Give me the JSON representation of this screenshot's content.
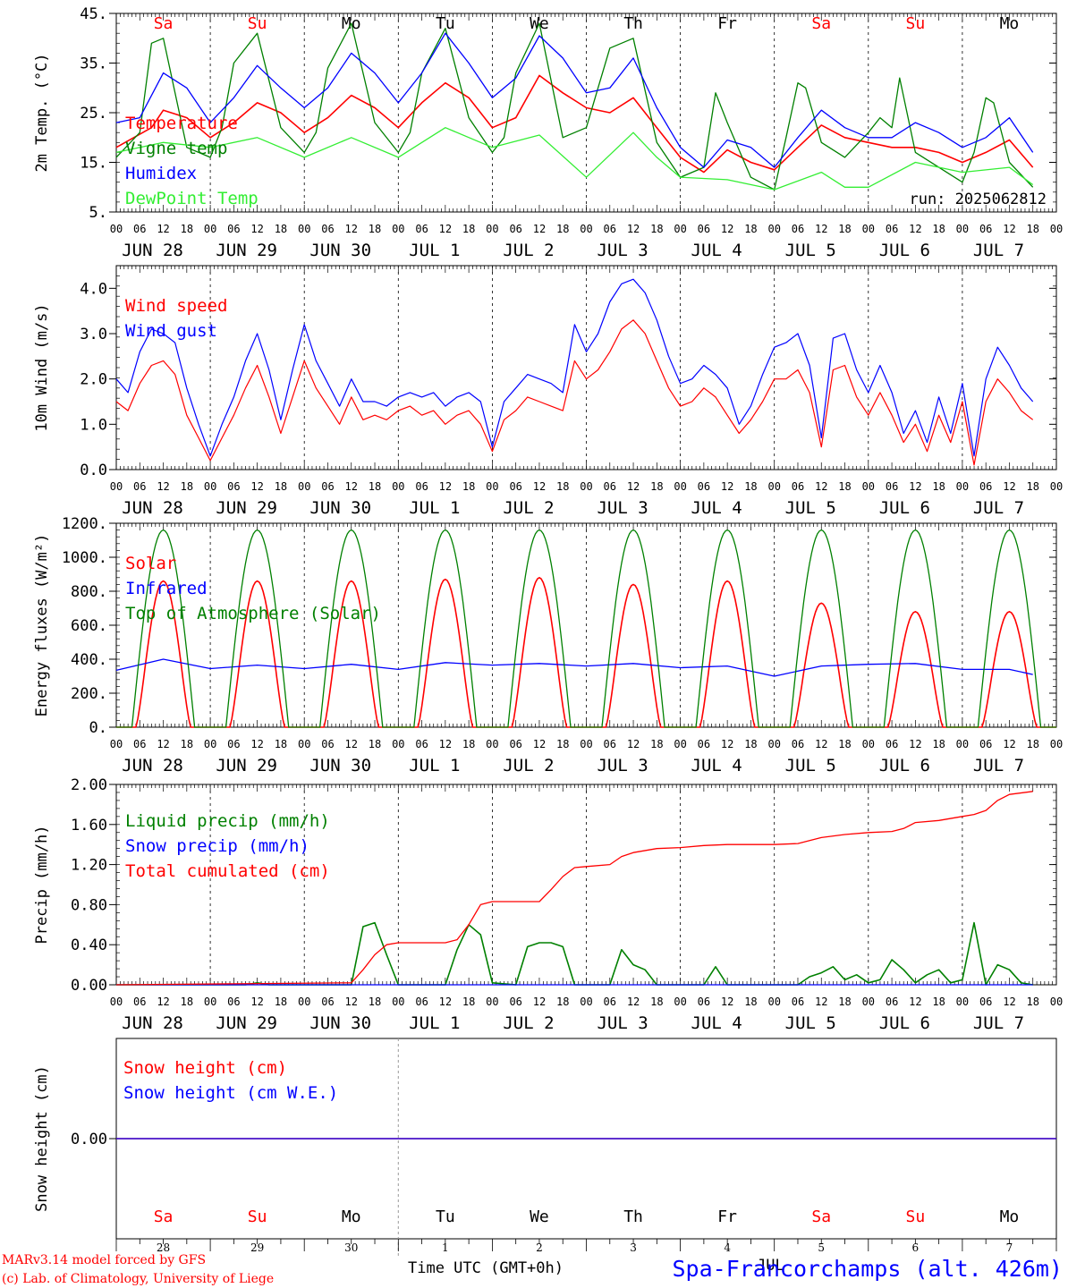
{
  "run_label": "run: 2025062812",
  "footer": {
    "model": "MARv3.14 model forced by GFS",
    "copyright": "(c) Lab. of Climatology, University of Liege",
    "time_label": "Time UTC (GMT+0h)",
    "month_label": "JUL",
    "station": "Spa-Francorchamps (alt. 426m)"
  },
  "days": [
    "JUN 28",
    "JUN 29",
    "JUN 30",
    "JUL  1",
    "JUL  2",
    "JUL  3",
    "JUL  4",
    "JUL  5",
    "JUL  6",
    "JUL  7"
  ],
  "day_numbers": [
    "28",
    "29",
    "30",
    "1",
    "2",
    "3",
    "4",
    "5",
    "6",
    "7"
  ],
  "weekdays": [
    "Sa",
    "Su",
    "Mo",
    "Tu",
    "We",
    "Th",
    "Fr",
    "Sa",
    "Su",
    "Mo"
  ],
  "hour_ticks": [
    "00",
    "06",
    "12",
    "18"
  ],
  "colors": {
    "red": "#ff0000",
    "green": "#008000",
    "blue": "#0000ff",
    "lightgreen": "#33ee33",
    "black": "#000000"
  },
  "chart_data": [
    {
      "type": "line",
      "ylabel": "2m Temp. (°C)",
      "ylim": [
        5,
        45
      ],
      "yticks": [
        "5.",
        "15.",
        "25.",
        "35.",
        "45."
      ],
      "x_unit": "hours since JUN 28 00 UTC",
      "series": [
        {
          "name": "Temperature",
          "color": "#ff0000",
          "x": [
            0,
            9,
            12,
            18,
            24,
            30,
            36,
            42,
            48,
            54,
            60,
            66,
            72,
            78,
            84,
            90,
            96,
            102,
            108,
            114,
            120,
            126,
            132,
            138,
            144,
            150,
            156,
            162,
            168,
            174,
            180,
            186,
            192,
            198,
            204,
            210,
            216,
            222,
            228,
            234
          ],
          "y": [
            18,
            22,
            25.5,
            24,
            20,
            23,
            27,
            25,
            21,
            24,
            28.5,
            26,
            22,
            27,
            31,
            28,
            22,
            24,
            32.5,
            29,
            26,
            25,
            28,
            22,
            16,
            13,
            17.5,
            15,
            13.5,
            18,
            22.5,
            20,
            19,
            18,
            18,
            17,
            15,
            17,
            19.5,
            14
          ]
        },
        {
          "name": "Vigne temp",
          "color": "#008000",
          "x": [
            0,
            6,
            9,
            12,
            18,
            24,
            27,
            30,
            36,
            42,
            48,
            51,
            54,
            60,
            66,
            72,
            75,
            78,
            84,
            90,
            96,
            99,
            102,
            108,
            114,
            120,
            123,
            126,
            132,
            138,
            144,
            150,
            153,
            156,
            162,
            168,
            171,
            174,
            176,
            180,
            186,
            192,
            195,
            198,
            200,
            204,
            210,
            216,
            219,
            222,
            224,
            228,
            234
          ],
          "y": [
            16,
            21,
            39,
            40,
            18,
            16,
            22,
            35,
            41,
            22,
            17,
            21,
            34,
            43,
            23,
            17,
            21,
            33,
            42,
            24,
            17,
            20,
            33,
            43,
            20,
            22,
            30,
            38,
            40,
            19,
            12,
            14,
            29,
            23,
            12,
            9.5,
            20,
            31,
            30,
            19,
            16,
            21,
            24,
            22,
            32,
            17,
            14,
            11,
            17,
            28,
            27,
            15,
            10
          ]
        },
        {
          "name": "Humidex",
          "color": "#0000ff",
          "x": [
            0,
            6,
            12,
            18,
            24,
            30,
            36,
            42,
            48,
            54,
            60,
            66,
            72,
            78,
            84,
            90,
            96,
            102,
            108,
            114,
            120,
            126,
            132,
            138,
            144,
            150,
            156,
            162,
            168,
            174,
            180,
            186,
            192,
            198,
            204,
            210,
            216,
            222,
            228,
            234
          ],
          "y": [
            23,
            24,
            33,
            30,
            23,
            28,
            34.5,
            30,
            26,
            30,
            37,
            33,
            27,
            33,
            41,
            35,
            28,
            32,
            40.5,
            36,
            29,
            30,
            36,
            26,
            18,
            14,
            19.5,
            18,
            14,
            20,
            25.5,
            22,
            20,
            20,
            23,
            21,
            18,
            20,
            24,
            17
          ]
        },
        {
          "name": "DewPoint Temp",
          "color": "#33ee33",
          "x": [
            0,
            12,
            24,
            36,
            48,
            60,
            72,
            84,
            96,
            108,
            120,
            132,
            138,
            144,
            156,
            168,
            180,
            186,
            192,
            204,
            216,
            228,
            234
          ],
          "y": [
            17,
            19,
            18,
            20,
            16,
            20,
            16,
            22,
            18,
            20.5,
            12,
            21,
            16,
            12,
            11.5,
            9.5,
            13,
            10,
            10,
            15,
            13,
            14,
            10.5
          ]
        }
      ]
    },
    {
      "type": "line",
      "ylabel": "10m Wind (m/s)",
      "ylim": [
        0,
        4.5
      ],
      "yticks": [
        "0.0",
        "1.0",
        "2.0",
        "3.0",
        "4.0"
      ],
      "x_unit": "hours since JUN 28 00 UTC",
      "series": [
        {
          "name": "Wind speed",
          "color": "#ff0000",
          "x": [
            0,
            3,
            6,
            9,
            12,
            15,
            18,
            21,
            24,
            27,
            30,
            33,
            36,
            39,
            42,
            45,
            48,
            51,
            54,
            57,
            60,
            63,
            66,
            69,
            72,
            75,
            78,
            81,
            84,
            87,
            90,
            93,
            96,
            99,
            102,
            105,
            108,
            111,
            114,
            117,
            120,
            123,
            126,
            129,
            132,
            135,
            138,
            141,
            144,
            147,
            150,
            153,
            156,
            159,
            162,
            165,
            168,
            171,
            174,
            177,
            180,
            183,
            186,
            189,
            192,
            195,
            198,
            201,
            204,
            207,
            210,
            213,
            216,
            219,
            222,
            225,
            228,
            231,
            234
          ],
          "y": [
            1.5,
            1.3,
            1.9,
            2.3,
            2.4,
            2.1,
            1.2,
            0.7,
            0.2,
            0.7,
            1.2,
            1.8,
            2.3,
            1.6,
            0.8,
            1.6,
            2.4,
            1.8,
            1.4,
            1.0,
            1.6,
            1.1,
            1.2,
            1.1,
            1.3,
            1.4,
            1.2,
            1.3,
            1.0,
            1.2,
            1.3,
            1.0,
            0.4,
            1.1,
            1.3,
            1.6,
            1.5,
            1.4,
            1.3,
            2.4,
            2.0,
            2.2,
            2.6,
            3.1,
            3.3,
            3.0,
            2.4,
            1.8,
            1.4,
            1.5,
            1.8,
            1.6,
            1.2,
            0.8,
            1.1,
            1.5,
            2.0,
            2.0,
            2.2,
            1.7,
            0.5,
            2.2,
            2.3,
            1.6,
            1.2,
            1.7,
            1.2,
            0.6,
            1.0,
            0.4,
            1.2,
            0.6,
            1.5,
            0.1,
            1.5,
            2.0,
            1.7,
            1.3,
            1.1
          ]
        },
        {
          "name": "Wind gust",
          "color": "#0000ff",
          "x": [
            0,
            3,
            6,
            9,
            12,
            15,
            18,
            21,
            24,
            27,
            30,
            33,
            36,
            39,
            42,
            45,
            48,
            51,
            54,
            57,
            60,
            63,
            66,
            69,
            72,
            75,
            78,
            81,
            84,
            87,
            90,
            93,
            96,
            99,
            102,
            105,
            108,
            111,
            114,
            117,
            120,
            123,
            126,
            129,
            132,
            135,
            138,
            141,
            144,
            147,
            150,
            153,
            156,
            159,
            162,
            165,
            168,
            171,
            174,
            177,
            180,
            183,
            186,
            189,
            192,
            195,
            198,
            201,
            204,
            207,
            210,
            213,
            216,
            219,
            222,
            225,
            228,
            231,
            234
          ],
          "y": [
            2.0,
            1.7,
            2.6,
            3.1,
            3.0,
            2.8,
            1.8,
            1.0,
            0.3,
            1.0,
            1.6,
            2.4,
            3.0,
            2.2,
            1.1,
            2.2,
            3.2,
            2.4,
            1.9,
            1.4,
            2.0,
            1.5,
            1.5,
            1.4,
            1.6,
            1.7,
            1.6,
            1.7,
            1.4,
            1.6,
            1.7,
            1.5,
            0.5,
            1.5,
            1.8,
            2.1,
            2.0,
            1.9,
            1.7,
            3.2,
            2.6,
            3.0,
            3.7,
            4.1,
            4.2,
            3.9,
            3.3,
            2.5,
            1.9,
            2.0,
            2.3,
            2.1,
            1.8,
            1.0,
            1.4,
            2.1,
            2.7,
            2.8,
            3.0,
            2.3,
            0.7,
            2.9,
            3.0,
            2.2,
            1.7,
            2.3,
            1.7,
            0.8,
            1.3,
            0.6,
            1.6,
            0.8,
            1.9,
            0.3,
            2.0,
            2.7,
            2.3,
            1.8,
            1.5
          ]
        }
      ]
    },
    {
      "type": "line",
      "ylabel": "Energy fluxes (W/m²)",
      "ylim": [
        0,
        1200
      ],
      "yticks": [
        "0.",
        "200.",
        "400.",
        "600.",
        "800.",
        "1000.",
        "1200."
      ],
      "x_unit": "hours since JUN 28 00 UTC",
      "series": [
        {
          "name": "Solar",
          "color": "#ff0000",
          "noon_peaks_W_m2": [
            860,
            860,
            860,
            870,
            880,
            840,
            860,
            730,
            680,
            680
          ]
        },
        {
          "name": "Infrared",
          "color": "#0000ff",
          "x": [
            0,
            12,
            24,
            36,
            48,
            60,
            72,
            84,
            96,
            108,
            120,
            132,
            144,
            156,
            168,
            180,
            192,
            204,
            216,
            228,
            234
          ],
          "y": [
            335,
            400,
            345,
            365,
            345,
            370,
            340,
            380,
            365,
            375,
            360,
            375,
            350,
            360,
            300,
            360,
            370,
            375,
            340,
            340,
            310
          ]
        },
        {
          "name": "Top of Atmosphere (Solar)",
          "color": "#008000",
          "daily_peak_W_m2": 1160,
          "sunrise_h": 4,
          "sunset_h": 20
        }
      ]
    },
    {
      "type": "line",
      "ylabel": "Precip (mm/h)",
      "ylim": [
        0,
        2.0
      ],
      "yticks": [
        "0.00",
        "0.40",
        "0.80",
        "1.20",
        "1.60",
        "2.00"
      ],
      "x_unit": "hours since JUN 28 00 UTC",
      "series": [
        {
          "name": "Liquid precip (mm/h)",
          "color": "#008000",
          "x": [
            0,
            33,
            36,
            39,
            60,
            63,
            66,
            69,
            72,
            75,
            78,
            81,
            84,
            87,
            90,
            93,
            96,
            102,
            105,
            108,
            111,
            114,
            117,
            120,
            126,
            129,
            132,
            135,
            138,
            144,
            150,
            153,
            156,
            174,
            177,
            180,
            183,
            186,
            189,
            192,
            195,
            198,
            201,
            204,
            207,
            210,
            213,
            216,
            219,
            222,
            225,
            228,
            231,
            234
          ],
          "y": [
            0,
            0,
            0.02,
            0,
            0,
            0.58,
            0.62,
            0.3,
            0,
            0,
            0,
            0,
            0,
            0.35,
            0.6,
            0.5,
            0.02,
            0,
            0.38,
            0.42,
            0.42,
            0.38,
            0,
            0,
            0,
            0.35,
            0.2,
            0.15,
            0,
            0,
            0,
            0.18,
            0,
            0,
            0.08,
            0.12,
            0.18,
            0.05,
            0.1,
            0.02,
            0.05,
            0.25,
            0.15,
            0.02,
            0.1,
            0.15,
            0.02,
            0.05,
            0.62,
            0,
            0.2,
            0.15,
            0.02,
            0
          ]
        },
        {
          "name": "Snow precip (mm/h)",
          "color": "#0000ff",
          "x": [
            0,
            234
          ],
          "y": [
            0,
            0
          ]
        },
        {
          "name": "Total cumulated (cm)",
          "color": "#ff0000",
          "x": [
            0,
            30,
            60,
            63,
            66,
            69,
            72,
            84,
            87,
            90,
            93,
            96,
            108,
            111,
            114,
            117,
            120,
            126,
            129,
            132,
            138,
            144,
            150,
            156,
            168,
            174,
            177,
            180,
            186,
            192,
            198,
            201,
            204,
            210,
            216,
            219,
            222,
            225,
            228,
            234
          ],
          "y": [
            0,
            0.01,
            0.02,
            0.15,
            0.3,
            0.4,
            0.42,
            0.42,
            0.45,
            0.6,
            0.8,
            0.83,
            0.83,
            0.95,
            1.08,
            1.17,
            1.18,
            1.2,
            1.28,
            1.32,
            1.36,
            1.37,
            1.39,
            1.4,
            1.4,
            1.41,
            1.44,
            1.47,
            1.5,
            1.52,
            1.53,
            1.56,
            1.62,
            1.64,
            1.68,
            1.7,
            1.74,
            1.84,
            1.9,
            1.93
          ]
        }
      ]
    },
    {
      "type": "line",
      "ylabel": "Snow height (cm)",
      "ylim": [
        -1,
        1
      ],
      "yticks": [
        "0.00"
      ],
      "x_unit": "hours since JUN 28 00 UTC",
      "series": [
        {
          "name": "Snow height (cm)",
          "color": "#ff0000",
          "x": [
            0,
            240
          ],
          "y": [
            0,
            0
          ]
        },
        {
          "name": "Snow height (cm W.E.)",
          "color": "#0000ff",
          "x": [
            0,
            240
          ],
          "y": [
            0,
            0
          ]
        }
      ]
    }
  ]
}
